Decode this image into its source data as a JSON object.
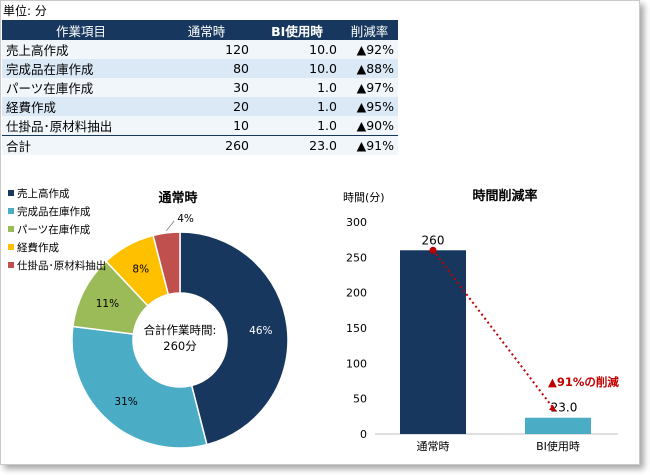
{
  "unit_label": "単位: 分",
  "table": {
    "headers": [
      "作業項目",
      "通常時",
      "BI使用時",
      "削減率"
    ],
    "rows": [
      {
        "item": "売上高作成",
        "normal": "120",
        "bi": "10.0",
        "reduction": "▲92%"
      },
      {
        "item": "完成品在庫作成",
        "normal": "80",
        "bi": "10.0",
        "reduction": "▲88%"
      },
      {
        "item": "パーツ在庫作成",
        "normal": "30",
        "bi": "1.0",
        "reduction": "▲97%"
      },
      {
        "item": "経費作成",
        "normal": "20",
        "bi": "1.0",
        "reduction": "▲95%"
      },
      {
        "item": "仕掛品･原材料抽出",
        "normal": "10",
        "bi": "1.0",
        "reduction": "▲90%"
      }
    ],
    "total": {
      "item": "合計",
      "normal": "260",
      "bi": "23.0",
      "reduction": "▲91%"
    }
  },
  "chart_data": [
    {
      "type": "pie",
      "title": "通常時",
      "center_label_line1": "合計作業時間:",
      "center_label_line2": "260分",
      "legend_placement": "left",
      "slices": [
        {
          "label": "売上高作成",
          "value": 46,
          "text": "46%",
          "color": "#17375e"
        },
        {
          "label": "完成品在庫作成",
          "value": 31,
          "text": "31%",
          "color": "#4bacc6"
        },
        {
          "label": "パーツ在庫作成",
          "value": 11,
          "text": "11%",
          "color": "#9bbb59"
        },
        {
          "label": "経費作成",
          "value": 8,
          "text": "8%",
          "color": "#ffc000"
        },
        {
          "label": "仕掛品･原材料抽出",
          "value": 4,
          "text": "4%",
          "color": "#c0504d"
        }
      ]
    },
    {
      "type": "bar",
      "title": "時間削減率",
      "ylabel": "時間(分)",
      "categories": [
        "通常時",
        "BI使用時"
      ],
      "values": [
        260,
        23.0
      ],
      "value_labels": [
        "260",
        "23.0"
      ],
      "colors": [
        "#17375e",
        "#4bacc6"
      ],
      "ylim": [
        0,
        300
      ],
      "yticks": [
        0,
        50,
        100,
        150,
        200,
        250,
        300
      ],
      "annotation": "▲91%の削減",
      "annotation_color": "#c00000"
    }
  ]
}
